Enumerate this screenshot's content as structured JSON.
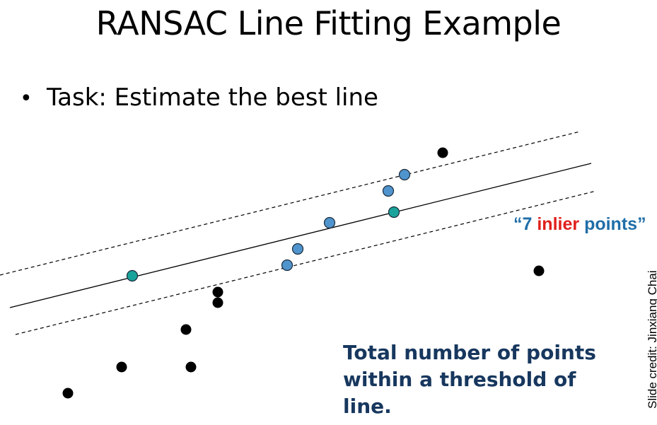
{
  "slide": {
    "title": "RANSAC Line Fitting Example",
    "bullet": "Task: Estimate the best line",
    "inlier_label": {
      "open_quote": "“",
      "count": "7",
      "highlight": "inlier",
      "rest": "points",
      "close_quote": "”"
    },
    "summary": "Total number of points within a threshold of line.",
    "credit": "Slide credit: Jinxiang Chai"
  },
  "colors": {
    "sample_point": "#1aa39a",
    "inlier_point": "#4f94cd",
    "outlier_point": "#000000",
    "inlier_label_text": "#1f6ea8",
    "inlier_label_accent": "#e0201c",
    "summary_text": "#17375e"
  }
}
